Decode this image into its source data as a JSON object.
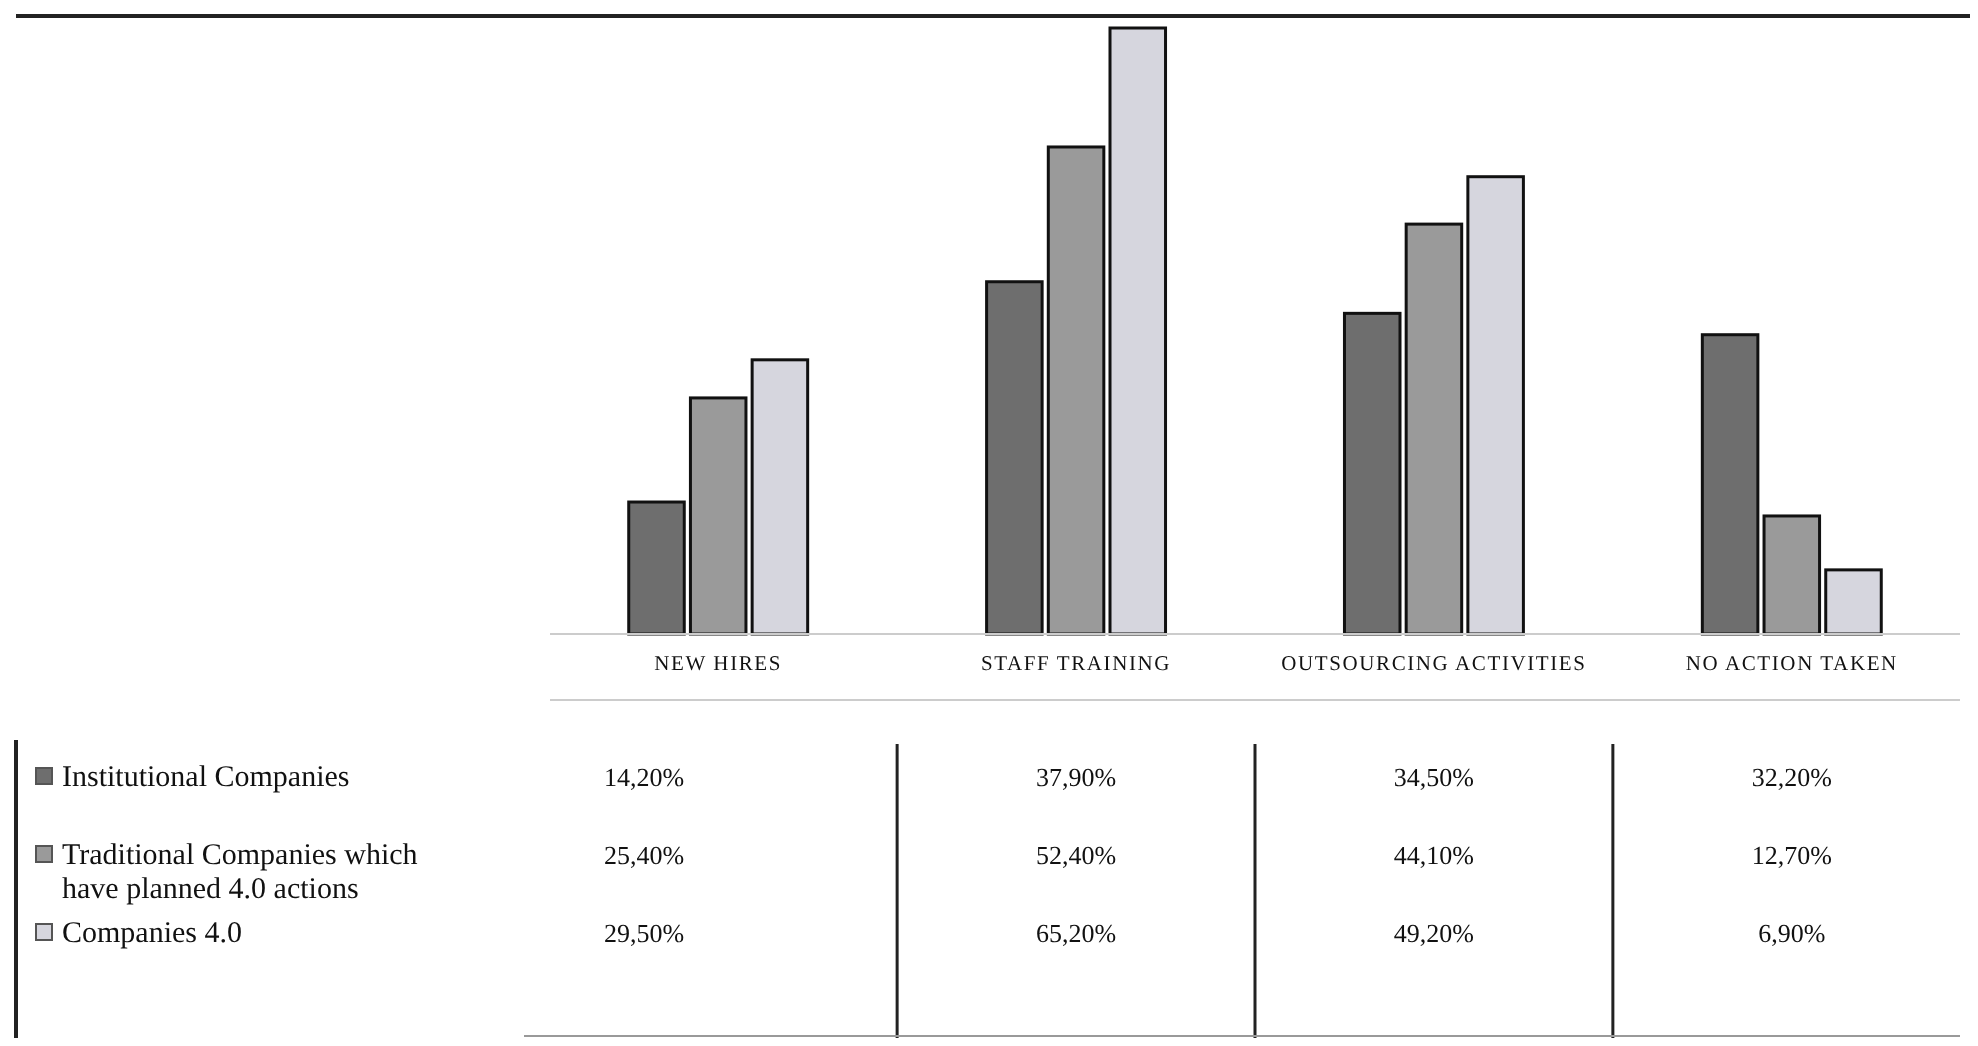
{
  "chart_data": {
    "type": "bar",
    "categories": [
      "NEW HIRES",
      "STAFF TRAINING",
      "OUTSOURCING ACTIVITIES",
      "NO ACTION TAKEN"
    ],
    "series": [
      {
        "name": "Institutional Companies",
        "color": "#6e6e6e",
        "values": [
          14.2,
          37.9,
          34.5,
          32.2
        ],
        "value_labels": [
          "14,20%",
          "37,90%",
          "34,50%",
          "32,20%"
        ]
      },
      {
        "name": "Traditional Companies which have planned 4.0 actions",
        "color": "#9a9a9a",
        "values": [
          25.4,
          52.4,
          44.1,
          12.7
        ],
        "value_labels": [
          "25,40%",
          "52,40%",
          "44,10%",
          "12,70%"
        ]
      },
      {
        "name": "Companies 4.0",
        "color": "#d6d6de",
        "values": [
          29.5,
          65.2,
          49.2,
          6.9
        ],
        "value_labels": [
          "29,50%",
          "65,20%",
          "49,20%",
          "6,90%"
        ]
      }
    ],
    "grid": false,
    "legend": "bottom left"
  }
}
